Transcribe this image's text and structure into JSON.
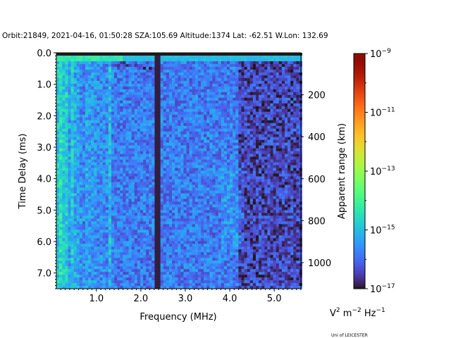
{
  "chart_data": {
    "type": "heatmap",
    "title": "Orbit:21849, 2021-04-16, 01:50:28 SZA:105.69 Altitude:1374 Lat: -62.51 W.Lon: 132.69",
    "xlabel": "Frequency (MHz)",
    "ylabel": "Time Delay (ms)",
    "y2label": "Apparent range (km)",
    "xlim": [
      0.1,
      5.6
    ],
    "ylim": [
      7.5,
      0.0
    ],
    "xticks": [
      1.0,
      2.0,
      3.0,
      4.0,
      5.0
    ],
    "xtick_labels": [
      "1.0",
      "2.0",
      "3.0",
      "4.0",
      "5.0"
    ],
    "yticks": [
      0.0,
      1.0,
      2.0,
      3.0,
      4.0,
      5.0,
      6.0,
      7.0
    ],
    "ytick_labels": [
      "0.0",
      "1.0",
      "2.0",
      "3.0",
      "4.0",
      "5.0",
      "6.0",
      "7.0"
    ],
    "y2ticks_km": [
      200,
      400,
      600,
      800,
      1000
    ],
    "y2tick_labels": [
      "200",
      "400",
      "600",
      "800",
      "1000"
    ],
    "km_per_ms": 149.9,
    "colorbar": {
      "scale": "log",
      "colormap": "turbo",
      "range_log10": [
        -17,
        -9
      ],
      "ticks_log10": [
        -9,
        -11,
        -13,
        -15,
        -17
      ],
      "tick_bases": [
        "10",
        "10",
        "10",
        "10",
        "10"
      ],
      "tick_exponents": [
        "−9",
        "−11",
        "−13",
        "−15",
        "−17"
      ],
      "units": {
        "v": "V",
        "v_exp": "2",
        "m": " m",
        "m_exp": "−2",
        "hz": " Hz",
        "hz_exp": "−1"
      }
    },
    "grid": {
      "freq_bins": 85,
      "freq_start": 0.1,
      "freq_step": 0.065,
      "time_bins": 84,
      "time_step": 0.0893
    },
    "features": {
      "background_log10": -15.8,
      "low_freq_enhancement_below_mhz": 0.8,
      "bright_row_ms": [
        0.09,
        0.18
      ],
      "empty_top_ms": [
        0.0,
        0.09
      ],
      "dark_stripe_mhz": [
        2.33,
        2.43
      ],
      "bright_stripe_mhz": 1.33,
      "dim_region_above_mhz": 4.2
    },
    "grid_on": false
  },
  "credit": "Uni of LEICESTER"
}
